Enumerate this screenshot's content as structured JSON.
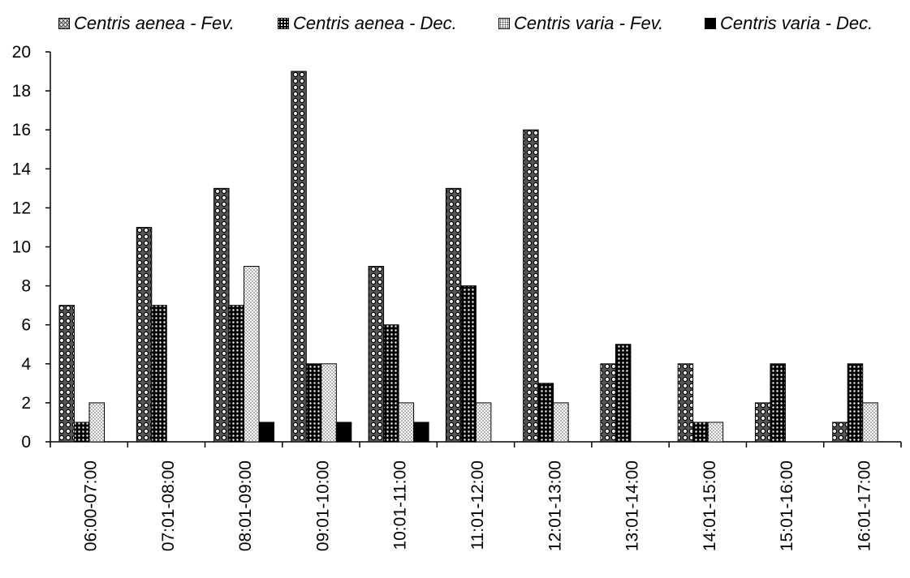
{
  "chart_data": {
    "type": "bar",
    "categories": [
      "06:00-07:00",
      "07:01-08:00",
      "08:01-09:00",
      "09:01-10:00",
      "10:01-11:00",
      "11:01-12:00",
      "12:01-13:00",
      "13:01-14:00",
      "14:01-15:00",
      "15:01-16:00",
      "16:01-17:00"
    ],
    "series": [
      {
        "name": "Centris aenea - Fev.",
        "values": [
          7,
          11,
          13,
          19,
          9,
          13,
          16,
          4,
          4,
          2,
          1
        ]
      },
      {
        "name": "Centris aenea - Dec.",
        "values": [
          1,
          7,
          7,
          4,
          6,
          8,
          3,
          5,
          1,
          4,
          4
        ]
      },
      {
        "name": "Centris varia - Fev.",
        "values": [
          2,
          0,
          9,
          4,
          2,
          2,
          2,
          0,
          1,
          0,
          2
        ]
      },
      {
        "name": "Centris varia - Dec.",
        "values": [
          0,
          0,
          1,
          1,
          1,
          0,
          0,
          0,
          0,
          0,
          0
        ]
      }
    ],
    "title": "",
    "xlabel": "",
    "ylabel": "",
    "ylim": [
      0,
      20
    ],
    "yticks": [
      0,
      2,
      4,
      6,
      8,
      10,
      12,
      14,
      16,
      18,
      20
    ],
    "grid": false,
    "legend_position": "top",
    "colors": [
      "#bdbdbd",
      "#000000",
      "#ffffff",
      "#000000"
    ]
  }
}
